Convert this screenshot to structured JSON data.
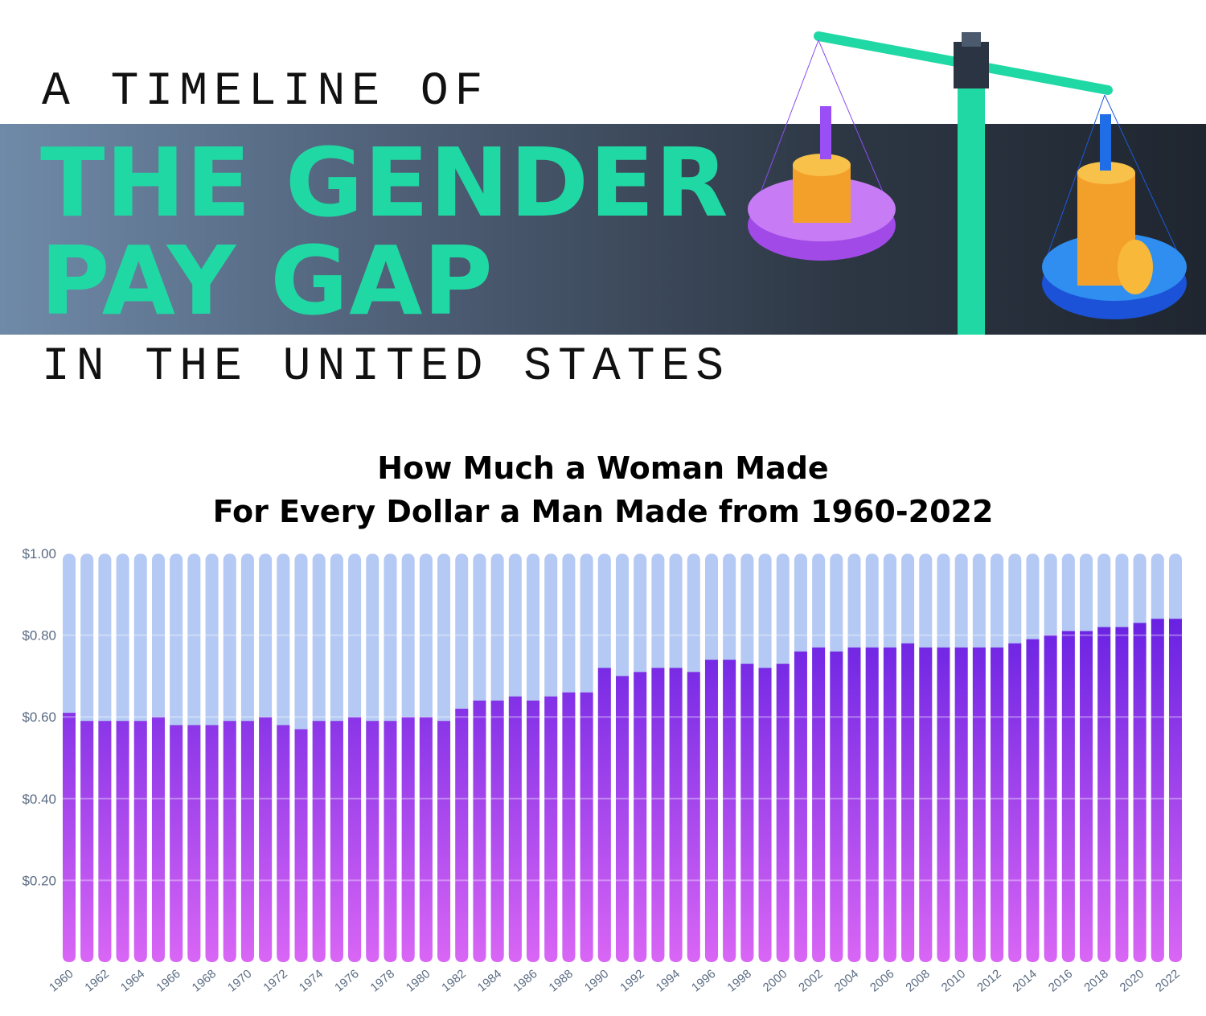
{
  "header": {
    "pre": "A TIMELINE OF",
    "line1": "THE GENDER",
    "line2": "PAY GAP",
    "post": "IN THE UNITED STATES"
  },
  "colors": {
    "accent": "#20d8a4",
    "bar_top": "#6620e2",
    "bar_bottom": "#d966f5",
    "remainder": "#b4c9f3",
    "axis_text": "#5a6b82"
  },
  "chart_data": {
    "type": "bar",
    "title_line1": "How Much a Woman Made",
    "title_line2": "For Every Dollar a Man Made from 1960-2022",
    "ylim": [
      0,
      1.0
    ],
    "yticks": [
      "$0.20",
      "$0.40",
      "$0.60",
      "$0.80",
      "$1.00"
    ],
    "ytick_values": [
      0.2,
      0.4,
      0.6,
      0.8,
      1.0
    ],
    "grid": true,
    "categories": [
      1960,
      1961,
      1962,
      1963,
      1964,
      1965,
      1966,
      1967,
      1968,
      1969,
      1970,
      1971,
      1972,
      1973,
      1974,
      1975,
      1976,
      1977,
      1978,
      1979,
      1980,
      1981,
      1982,
      1983,
      1984,
      1985,
      1986,
      1987,
      1988,
      1989,
      1990,
      1991,
      1992,
      1993,
      1994,
      1995,
      1996,
      1997,
      1998,
      1999,
      2000,
      2001,
      2002,
      2003,
      2004,
      2005,
      2006,
      2007,
      2008,
      2009,
      2010,
      2011,
      2012,
      2013,
      2014,
      2015,
      2016,
      2017,
      2018,
      2019,
      2020,
      2021,
      2022
    ],
    "xtick_labels": [
      "1960",
      "1962",
      "1964",
      "1966",
      "1968",
      "1970",
      "1972",
      "1974",
      "1976",
      "1978",
      "1980",
      "1982",
      "1984",
      "1986",
      "1988",
      "1990",
      "1992",
      "1994",
      "1996",
      "1998",
      "2000",
      "2002",
      "2004",
      "2006",
      "2008",
      "2010",
      "2012",
      "2014",
      "2016",
      "2018",
      "2020",
      "2022"
    ],
    "values": [
      0.61,
      0.59,
      0.59,
      0.59,
      0.59,
      0.6,
      0.58,
      0.58,
      0.58,
      0.59,
      0.59,
      0.6,
      0.58,
      0.57,
      0.59,
      0.59,
      0.6,
      0.59,
      0.59,
      0.6,
      0.6,
      0.59,
      0.62,
      0.64,
      0.64,
      0.65,
      0.64,
      0.65,
      0.66,
      0.66,
      0.72,
      0.7,
      0.71,
      0.72,
      0.72,
      0.71,
      0.74,
      0.74,
      0.73,
      0.72,
      0.73,
      0.76,
      0.77,
      0.76,
      0.77,
      0.77,
      0.77,
      0.78,
      0.77,
      0.77,
      0.77,
      0.77,
      0.77,
      0.78,
      0.79,
      0.8,
      0.81,
      0.81,
      0.82,
      0.82,
      0.83,
      0.84,
      0.84
    ]
  }
}
